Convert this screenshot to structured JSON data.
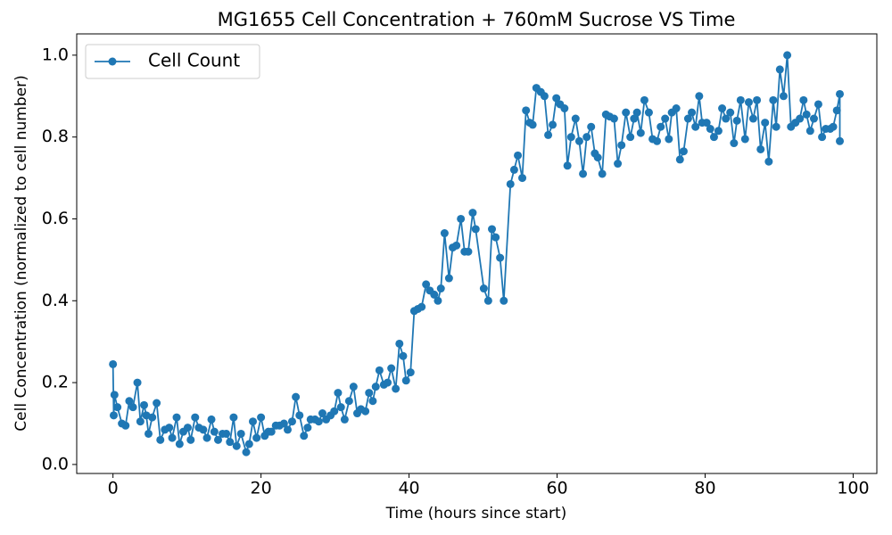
{
  "chart_data": {
    "type": "line",
    "title": "MG1655 Cell Concentration + 760mM Sucrose VS Time",
    "x_label": "Time (hours since start)",
    "y_label": "Cell Concentration (normalized to cell number)",
    "x": [
      0,
      0.1,
      0.2,
      0.6,
      1.2,
      1.7,
      2.2,
      2.7,
      3.3,
      3.7,
      4.2,
      4.5,
      4.8,
      5.3,
      5.9,
      6.4,
      7.0,
      7.6,
      8.0,
      8.6,
      9.0,
      9.5,
      10.1,
      10.5,
      11.1,
      11.6,
      12.2,
      12.7,
      13.3,
      13.7,
      14.2,
      14.8,
      15.3,
      15.8,
      16.3,
      16.7,
      17.3,
      18.0,
      18.4,
      18.9,
      19.4,
      20.0,
      20.5,
      21.0,
      21.4,
      22.0,
      22.5,
      23.1,
      23.6,
      24.2,
      24.7,
      25.2,
      25.8,
      26.3,
      26.7,
      27.3,
      27.8,
      28.3,
      28.8,
      29.4,
      29.9,
      30.4,
      30.8,
      31.3,
      31.9,
      32.5,
      33.0,
      33.5,
      34.1,
      34.6,
      35.1,
      35.5,
      36.0,
      36.6,
      37.1,
      37.6,
      38.2,
      38.7,
      39.2,
      39.6,
      40.2,
      40.7,
      41.2,
      41.7,
      42.3,
      42.8,
      43.4,
      43.9,
      44.3,
      44.8,
      45.4,
      45.9,
      46.4,
      47.0,
      47.5,
      48.0,
      48.6,
      49.0,
      50.1,
      50.7,
      51.2,
      51.7,
      52.3,
      52.8,
      53.7,
      54.2,
      54.7,
      55.3,
      55.8,
      56.3,
      56.7,
      57.2,
      57.8,
      58.3,
      58.8,
      59.4,
      59.9,
      60.4,
      61.0,
      61.4,
      61.9,
      62.5,
      63.0,
      63.5,
      64.0,
      64.6,
      65.1,
      65.5,
      66.1,
      66.6,
      67.1,
      67.7,
      68.2,
      68.7,
      69.3,
      69.9,
      70.4,
      70.8,
      71.3,
      71.8,
      72.4,
      72.9,
      73.5,
      74.0,
      74.6,
      75.1,
      75.5,
      76.1,
      76.6,
      77.1,
      77.7,
      78.2,
      78.7,
      79.2,
      79.6,
      80.2,
      80.7,
      81.2,
      81.8,
      82.3,
      82.8,
      83.4,
      83.9,
      84.3,
      84.8,
      85.4,
      85.9,
      86.5,
      87.0,
      87.5,
      88.1,
      88.6,
      89.2,
      89.6,
      90.1,
      90.6,
      91.1,
      91.6,
      92.2,
      92.8,
      93.3,
      93.7,
      94.2,
      94.7,
      95.3,
      95.8,
      96.3,
      96.9,
      97.3,
      97.8,
      98.2,
      98.2
    ],
    "series": [
      {
        "name": "Cell Count",
        "color": "#1f77b4",
        "values": [
          0.245,
          0.12,
          0.17,
          0.14,
          0.1,
          0.095,
          0.155,
          0.14,
          0.2,
          0.105,
          0.145,
          0.12,
          0.075,
          0.115,
          0.15,
          0.06,
          0.085,
          0.09,
          0.065,
          0.115,
          0.05,
          0.08,
          0.09,
          0.06,
          0.115,
          0.09,
          0.085,
          0.065,
          0.11,
          0.08,
          0.06,
          0.075,
          0.075,
          0.055,
          0.115,
          0.045,
          0.075,
          0.03,
          0.05,
          0.105,
          0.065,
          0.115,
          0.07,
          0.08,
          0.08,
          0.095,
          0.095,
          0.1,
          0.085,
          0.105,
          0.165,
          0.12,
          0.07,
          0.09,
          0.11,
          0.11,
          0.105,
          0.125,
          0.11,
          0.12,
          0.13,
          0.175,
          0.14,
          0.11,
          0.155,
          0.19,
          0.125,
          0.135,
          0.13,
          0.175,
          0.155,
          0.19,
          0.23,
          0.195,
          0.2,
          0.235,
          0.185,
          0.295,
          0.265,
          0.205,
          0.225,
          0.375,
          0.38,
          0.385,
          0.44,
          0.425,
          0.415,
          0.4,
          0.43,
          0.565,
          0.455,
          0.53,
          0.535,
          0.6,
          0.52,
          0.52,
          0.615,
          0.575,
          0.43,
          0.4,
          0.575,
          0.555,
          0.505,
          0.4,
          0.685,
          0.72,
          0.755,
          0.7,
          0.865,
          0.835,
          0.83,
          0.92,
          0.91,
          0.9,
          0.805,
          0.83,
          0.895,
          0.88,
          0.87,
          0.73,
          0.8,
          0.845,
          0.79,
          0.71,
          0.8,
          0.825,
          0.76,
          0.75,
          0.71,
          0.855,
          0.85,
          0.845,
          0.735,
          0.78,
          0.86,
          0.8,
          0.845,
          0.86,
          0.81,
          0.89,
          0.86,
          0.795,
          0.79,
          0.825,
          0.845,
          0.795,
          0.86,
          0.87,
          0.745,
          0.765,
          0.845,
          0.86,
          0.825,
          0.9,
          0.835,
          0.835,
          0.82,
          0.8,
          0.815,
          0.87,
          0.845,
          0.86,
          0.785,
          0.84,
          0.89,
          0.795,
          0.885,
          0.845,
          0.89,
          0.77,
          0.835,
          0.74,
          0.89,
          0.825,
          0.965,
          0.9,
          1.0,
          0.825,
          0.835,
          0.845,
          0.89,
          0.855,
          0.815,
          0.845,
          0.88,
          0.8,
          0.82,
          0.82,
          0.825,
          0.865,
          0.905,
          0.79
        ]
      }
    ],
    "xlim": [
      -4.9,
      103.2
    ],
    "ylim": [
      -0.022,
      1.052
    ],
    "xticks": [
      0,
      20,
      40,
      60,
      80,
      100
    ],
    "yticks": [
      {
        "value": 0,
        "label": "0.0"
      },
      0.2,
      0.4,
      0.6,
      0.8,
      {
        "value": 1,
        "label": "1.0"
      }
    ],
    "legend": "upper left",
    "markers": true
  }
}
